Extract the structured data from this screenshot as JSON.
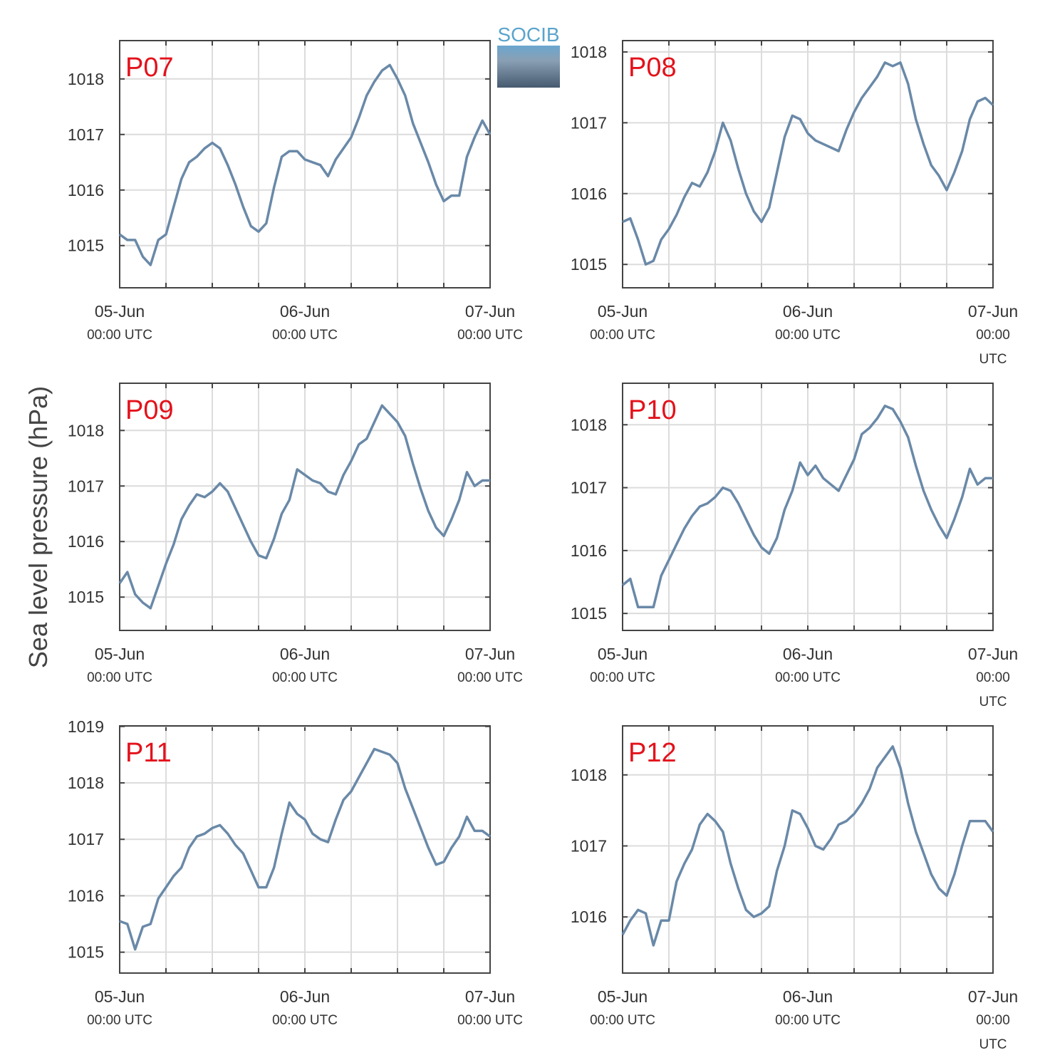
{
  "ylabel": "Sea level pressure (hPa)",
  "logo": "SOCIB",
  "chart_data": [
    {
      "type": "line",
      "title": "P07",
      "color": "#6a89a8",
      "x": [
        0,
        1,
        2,
        3,
        4,
        5,
        6,
        7,
        8,
        9,
        10,
        11,
        12,
        13,
        14,
        15,
        16,
        17,
        18,
        19,
        20,
        21,
        22,
        23,
        24,
        25,
        26,
        27,
        28,
        29,
        30,
        31,
        32,
        33,
        34,
        35,
        36,
        37,
        38,
        39,
        40,
        41,
        42,
        43,
        44,
        45,
        46,
        47,
        48
      ],
      "values": [
        1015.2,
        1015.1,
        1015.1,
        1014.8,
        1014.65,
        1015.1,
        1015.2,
        1015.7,
        1016.2,
        1016.5,
        1016.6,
        1016.75,
        1016.85,
        1016.75,
        1016.45,
        1016.1,
        1015.7,
        1015.35,
        1015.25,
        1015.4,
        1016.05,
        1016.6,
        1016.7,
        1016.7,
        1016.55,
        1016.5,
        1016.45,
        1016.25,
        1016.55,
        1016.75,
        1016.95,
        1017.3,
        1017.7,
        1017.95,
        1018.15,
        1018.25,
        1018.0,
        1017.7,
        1017.2,
        1016.85,
        1016.5,
        1016.1,
        1015.8,
        1015.9,
        1015.9,
        1016.6,
        1016.95,
        1017.25,
        1017.0
      ],
      "xlim": [
        0,
        48
      ],
      "xticks": [
        {
          "value": 0,
          "label": "05-Jun\n00:00 UTC"
        },
        {
          "value": 24,
          "label": "06-Jun\n00:00 UTC"
        },
        {
          "value": 48,
          "label": "07-Jun\n00:00 UTC"
        }
      ],
      "xminor_ticks": [
        6,
        12,
        18,
        30,
        36,
        42
      ],
      "ylim": [
        1014.24,
        1018.69
      ],
      "yticks": [
        1015,
        1016,
        1017,
        1018
      ],
      "grid": true
    },
    {
      "type": "line",
      "title": "P08",
      "color": "#6a89a8",
      "x": [
        0,
        1,
        2,
        3,
        4,
        5,
        6,
        7,
        8,
        9,
        10,
        11,
        12,
        13,
        14,
        15,
        16,
        17,
        18,
        19,
        20,
        21,
        22,
        23,
        24,
        25,
        26,
        27,
        28,
        29,
        30,
        31,
        32,
        33,
        34,
        35,
        36,
        37,
        38,
        39,
        40,
        41,
        42,
        43,
        44,
        45,
        46,
        47,
        48
      ],
      "values": [
        1015.6,
        1015.65,
        1015.35,
        1015.0,
        1015.05,
        1015.35,
        1015.5,
        1015.7,
        1015.95,
        1016.15,
        1016.1,
        1016.3,
        1016.6,
        1017.0,
        1016.75,
        1016.35,
        1016.0,
        1015.75,
        1015.6,
        1015.8,
        1016.3,
        1016.8,
        1017.1,
        1017.05,
        1016.85,
        1016.75,
        1016.7,
        1016.65,
        1016.6,
        1016.9,
        1017.15,
        1017.35,
        1017.5,
        1017.65,
        1017.85,
        1017.8,
        1017.85,
        1017.55,
        1017.05,
        1016.7,
        1016.4,
        1016.25,
        1016.05,
        1016.3,
        1016.6,
        1017.05,
        1017.3,
        1017.35,
        1017.25
      ],
      "xlim": [
        0,
        48
      ],
      "xticks": [
        {
          "value": 0,
          "label": "05-Jun\n00:00 UTC"
        },
        {
          "value": 24,
          "label": "06-Jun\n00:00 UTC"
        },
        {
          "value": 48,
          "label": "07-Jun\n00:00 UTC"
        }
      ],
      "xminor_ticks": [
        6,
        12,
        18,
        30,
        36,
        42
      ],
      "ylim": [
        1014.67,
        1018.16
      ],
      "yticks": [
        1015,
        1016,
        1017,
        1018
      ],
      "grid": true
    },
    {
      "type": "line",
      "title": "P09",
      "color": "#6a89a8",
      "x": [
        0,
        1,
        2,
        3,
        4,
        5,
        6,
        7,
        8,
        9,
        10,
        11,
        12,
        13,
        14,
        15,
        16,
        17,
        18,
        19,
        20,
        21,
        22,
        23,
        24,
        25,
        26,
        27,
        28,
        29,
        30,
        31,
        32,
        33,
        34,
        35,
        36,
        37,
        38,
        39,
        40,
        41,
        42,
        43,
        44,
        45,
        46,
        47,
        48
      ],
      "values": [
        1015.25,
        1015.45,
        1015.05,
        1014.9,
        1014.8,
        1015.2,
        1015.6,
        1015.95,
        1016.4,
        1016.65,
        1016.85,
        1016.8,
        1016.9,
        1017.05,
        1016.9,
        1016.6,
        1016.3,
        1016.0,
        1015.75,
        1015.7,
        1016.05,
        1016.5,
        1016.75,
        1017.3,
        1017.2,
        1017.1,
        1017.05,
        1016.9,
        1016.85,
        1017.2,
        1017.45,
        1017.75,
        1017.85,
        1018.15,
        1018.45,
        1018.3,
        1018.15,
        1017.9,
        1017.4,
        1016.95,
        1016.55,
        1016.25,
        1016.1,
        1016.4,
        1016.75,
        1017.25,
        1017.0,
        1017.1,
        1017.1
      ],
      "xlim": [
        0,
        48
      ],
      "xticks": [
        {
          "value": 0,
          "label": "05-Jun\n00:00 UTC"
        },
        {
          "value": 24,
          "label": "06-Jun\n00:00 UTC"
        },
        {
          "value": 48,
          "label": "07-Jun\n00:00 UTC"
        }
      ],
      "xminor_ticks": [
        6,
        12,
        18,
        30,
        36,
        42
      ],
      "ylim": [
        1014.4,
        1018.85
      ],
      "yticks": [
        1015,
        1016,
        1017,
        1018
      ],
      "grid": true
    },
    {
      "type": "line",
      "title": "P10",
      "color": "#6a89a8",
      "x": [
        0,
        1,
        2,
        3,
        4,
        5,
        6,
        7,
        8,
        9,
        10,
        11,
        12,
        13,
        14,
        15,
        16,
        17,
        18,
        19,
        20,
        21,
        22,
        23,
        24,
        25,
        26,
        27,
        28,
        29,
        30,
        31,
        32,
        33,
        34,
        35,
        36,
        37,
        38,
        39,
        40,
        41,
        42,
        43,
        44,
        45,
        46,
        47,
        48
      ],
      "values": [
        1015.45,
        1015.55,
        1015.1,
        1015.1,
        1015.1,
        1015.6,
        1015.85,
        1016.1,
        1016.35,
        1016.55,
        1016.7,
        1016.75,
        1016.85,
        1017.0,
        1016.95,
        1016.75,
        1016.5,
        1016.25,
        1016.05,
        1015.95,
        1016.2,
        1016.65,
        1016.95,
        1017.4,
        1017.2,
        1017.35,
        1017.15,
        1017.05,
        1016.95,
        1017.2,
        1017.45,
        1017.85,
        1017.95,
        1018.1,
        1018.3,
        1018.25,
        1018.05,
        1017.8,
        1017.35,
        1016.95,
        1016.65,
        1016.4,
        1016.2,
        1016.5,
        1016.85,
        1017.3,
        1017.05,
        1017.15,
        1017.15
      ],
      "xlim": [
        0,
        48
      ],
      "xticks": [
        {
          "value": 0,
          "label": "05-Jun\n00:00 UTC"
        },
        {
          "value": 24,
          "label": "06-Jun\n00:00 UTC"
        },
        {
          "value": 48,
          "label": "07-Jun\n00:00 UTC"
        }
      ],
      "xminor_ticks": [
        6,
        12,
        18,
        30,
        36,
        42
      ],
      "ylim": [
        1014.73,
        1018.66
      ],
      "yticks": [
        1015,
        1016,
        1017,
        1018
      ],
      "grid": true
    },
    {
      "type": "line",
      "title": "P11",
      "color": "#6a89a8",
      "x": [
        0,
        1,
        2,
        3,
        4,
        5,
        6,
        7,
        8,
        9,
        10,
        11,
        12,
        13,
        14,
        15,
        16,
        17,
        18,
        19,
        20,
        21,
        22,
        23,
        24,
        25,
        26,
        27,
        28,
        29,
        30,
        31,
        32,
        33,
        34,
        35,
        36,
        37,
        38,
        39,
        40,
        41,
        42,
        43,
        44,
        45,
        46,
        47,
        48
      ],
      "values": [
        1015.55,
        1015.5,
        1015.05,
        1015.45,
        1015.5,
        1015.95,
        1016.15,
        1016.35,
        1016.5,
        1016.85,
        1017.05,
        1017.1,
        1017.2,
        1017.25,
        1017.1,
        1016.9,
        1016.75,
        1016.45,
        1016.15,
        1016.15,
        1016.5,
        1017.1,
        1017.65,
        1017.45,
        1017.35,
        1017.1,
        1017.0,
        1016.95,
        1017.35,
        1017.7,
        1017.85,
        1018.1,
        1018.35,
        1018.6,
        1018.55,
        1018.5,
        1018.35,
        1017.9,
        1017.55,
        1017.2,
        1016.85,
        1016.55,
        1016.6,
        1016.85,
        1017.05,
        1017.4,
        1017.15,
        1017.15,
        1017.05
      ],
      "xlim": [
        0,
        48
      ],
      "xticks": [
        {
          "value": 0,
          "label": "05-Jun\n00:00 UTC"
        },
        {
          "value": 24,
          "label": "06-Jun\n00:00 UTC"
        },
        {
          "value": 48,
          "label": "07-Jun\n00:00 UTC"
        }
      ],
      "xminor_ticks": [
        6,
        12,
        18,
        30,
        36,
        42
      ],
      "ylim": [
        1014.63,
        1019.01
      ],
      "yticks": [
        1015,
        1016,
        1017,
        1018,
        1019
      ],
      "grid": true
    },
    {
      "type": "line",
      "title": "P12",
      "color": "#6a89a8",
      "x": [
        0,
        1,
        2,
        3,
        4,
        5,
        6,
        7,
        8,
        9,
        10,
        11,
        12,
        13,
        14,
        15,
        16,
        17,
        18,
        19,
        20,
        21,
        22,
        23,
        24,
        25,
        26,
        27,
        28,
        29,
        30,
        31,
        32,
        33,
        34,
        35,
        36,
        37,
        38,
        39,
        40,
        41,
        42,
        43,
        44,
        45,
        46,
        47,
        48
      ],
      "values": [
        1015.75,
        1015.95,
        1016.1,
        1016.05,
        1015.6,
        1015.95,
        1015.95,
        1016.5,
        1016.75,
        1016.95,
        1017.3,
        1017.45,
        1017.35,
        1017.2,
        1016.75,
        1016.4,
        1016.1,
        1016.0,
        1016.05,
        1016.15,
        1016.65,
        1017.0,
        1017.5,
        1017.45,
        1017.25,
        1017.0,
        1016.95,
        1017.1,
        1017.3,
        1017.35,
        1017.45,
        1017.6,
        1017.8,
        1018.1,
        1018.25,
        1018.4,
        1018.1,
        1017.6,
        1017.2,
        1016.9,
        1016.6,
        1016.4,
        1016.3,
        1016.6,
        1017.0,
        1017.35,
        1017.35,
        1017.35,
        1017.2
      ],
      "xlim": [
        0,
        48
      ],
      "xticks": [
        {
          "value": 0,
          "label": "05-Jun\n00:00 UTC"
        },
        {
          "value": 24,
          "label": "06-Jun\n00:00 UTC"
        },
        {
          "value": 48,
          "label": "07-Jun\n00:00 UTC"
        }
      ],
      "xminor_ticks": [
        6,
        12,
        18,
        30,
        36,
        42
      ],
      "ylim": [
        1015.21,
        1018.69
      ],
      "yticks": [
        1016,
        1017,
        1018
      ],
      "grid": true
    }
  ]
}
